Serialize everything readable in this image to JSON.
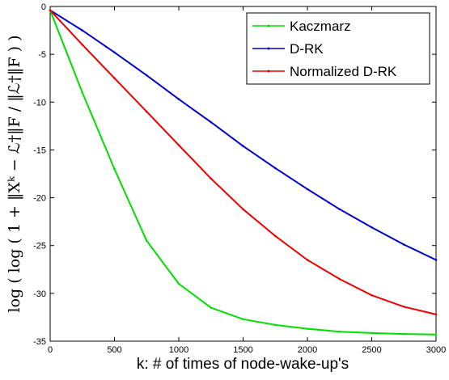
{
  "chart_data": {
    "type": "line",
    "xlabel": "k: # of times of node-wake-up's",
    "ylabel": "log ( log ( 1 + ‖Xᵏ − ℒ†‖F / ‖ℒ†‖F ) )",
    "xlim": [
      0,
      3000
    ],
    "ylim": [
      -35,
      0
    ],
    "xticks": [
      "0",
      "500",
      "1000",
      "1500",
      "2000",
      "2500",
      "3000"
    ],
    "yticks": [
      "0",
      "-5",
      "-10",
      "-15",
      "-20",
      "-25",
      "-30",
      "-35"
    ],
    "grid": false,
    "legend_position": "top-right",
    "x": [
      0,
      250,
      500,
      750,
      1000,
      1250,
      1500,
      1750,
      2000,
      2250,
      2500,
      2750,
      3000
    ],
    "series": [
      {
        "name": "Kaczmarz",
        "color": "#00dd00",
        "values": [
          -0.4,
          -9.0,
          -17.0,
          -24.5,
          -29.0,
          -31.5,
          -32.7,
          -33.3,
          -33.7,
          -34.0,
          -34.15,
          -34.25,
          -34.3
        ]
      },
      {
        "name": "D-RK",
        "color": "#0000cc",
        "values": [
          -0.4,
          -2.5,
          -4.8,
          -7.2,
          -9.7,
          -12.1,
          -14.6,
          -16.9,
          -19.1,
          -21.2,
          -23.1,
          -24.9,
          -26.5
        ]
      },
      {
        "name": "Normalized D-RK",
        "color": "#ee0000",
        "values": [
          -0.4,
          -4.0,
          -7.5,
          -11.0,
          -14.5,
          -18.0,
          -21.2,
          -24.0,
          -26.5,
          -28.5,
          -30.2,
          -31.4,
          -32.2
        ]
      }
    ]
  }
}
